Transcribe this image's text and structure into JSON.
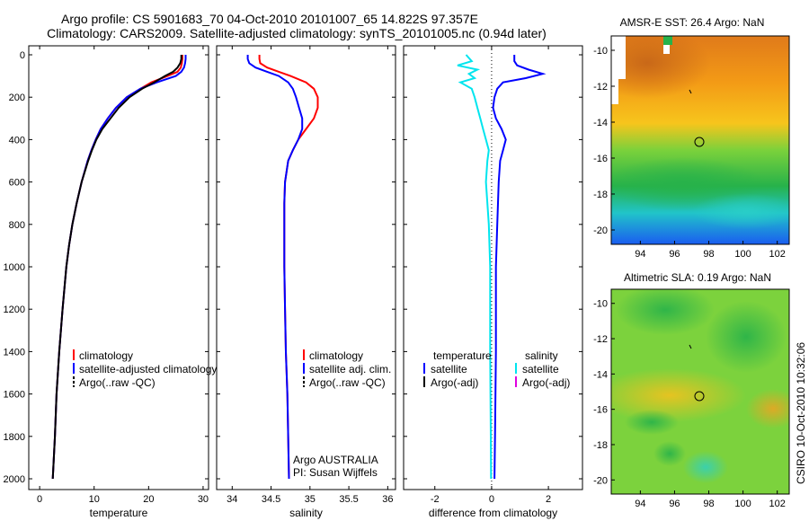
{
  "header": {
    "line1": "Argo profile: CS 5901683_70 04-Oct-2010 20101007_65 14.822S 97.357E",
    "line2": "Climatology: CARS2009. Satellite-adjusted climatology: synTS_20101005.nc (0.94d later)"
  },
  "colors": {
    "red": "#ff0000",
    "blue": "#0000ff",
    "black": "#000000",
    "cyan": "#00e5ee",
    "magenta": "#e000e0"
  },
  "chart_data": [
    {
      "type": "line",
      "xlabel": "temperature",
      "ylim": [
        2000,
        0
      ],
      "yticks": [
        "0",
        "200",
        "400",
        "600",
        "800",
        "1000",
        "1200",
        "1400",
        "1600",
        "1800",
        "2000"
      ],
      "xlim": [
        -2,
        31
      ],
      "xticks": [
        "0",
        "10",
        "20",
        "30"
      ],
      "legend": [
        "climatology",
        "satellite-adjusted climatology",
        "Argo(..raw -QC)"
      ],
      "series": [
        {
          "name": "climatology",
          "color": "red",
          "depth": [
            0,
            20,
            40,
            60,
            80,
            100,
            130,
            160,
            200,
            250,
            300,
            350,
            400,
            450,
            500,
            600,
            700,
            800,
            900,
            1000,
            1200,
            1400,
            1600,
            1800,
            2000
          ],
          "values": [
            26.2,
            26.2,
            26.1,
            25.9,
            25.3,
            23.5,
            20.5,
            18.5,
            16.0,
            14.0,
            12.5,
            11.2,
            10.3,
            9.5,
            8.8,
            7.7,
            6.8,
            6.0,
            5.4,
            4.9,
            4.2,
            3.6,
            3.1,
            2.8,
            2.4
          ]
        },
        {
          "name": "satellite-adjusted climatology",
          "color": "blue",
          "depth": [
            0,
            20,
            40,
            60,
            80,
            100,
            130,
            160,
            200,
            250,
            300,
            350,
            400,
            450,
            500,
            600,
            700,
            800,
            900,
            1000,
            1200,
            1400,
            1600,
            1800,
            2000
          ],
          "values": [
            26.8,
            26.8,
            26.7,
            26.5,
            26.0,
            25.0,
            21.5,
            18.5,
            16.0,
            14.0,
            12.5,
            11.2,
            10.3,
            9.5,
            8.8,
            7.7,
            6.8,
            6.0,
            5.4,
            4.9,
            4.2,
            3.6,
            3.1,
            2.8,
            2.4
          ]
        },
        {
          "name": "Argo(..raw -QC)",
          "color": "black",
          "depth": [
            0,
            20,
            40,
            60,
            80,
            100,
            130,
            160,
            200,
            250,
            300,
            350,
            400,
            450,
            500,
            600,
            700,
            800,
            900,
            1000,
            1200,
            1400,
            1600,
            1800,
            2000
          ],
          "values": [
            26.0,
            26.0,
            25.8,
            25.3,
            24.5,
            23.0,
            21.0,
            18.8,
            16.5,
            14.5,
            13.0,
            11.5,
            10.4,
            9.6,
            8.9,
            7.7,
            6.8,
            6.0,
            5.4,
            4.9,
            4.2,
            3.6,
            3.1,
            2.8,
            2.4
          ]
        }
      ]
    },
    {
      "type": "line",
      "xlabel": "salinity",
      "ylim": [
        2000,
        0
      ],
      "xlim": [
        33.8,
        36.1
      ],
      "xticks": [
        "34",
        "34.5",
        "35",
        "35.5",
        "36"
      ],
      "legend": [
        "climatology",
        "satellite adj. clim.",
        "Argo(..raw -QC)"
      ],
      "annotation": [
        "Argo AUSTRALIA",
        "PI: Susan Wijffels"
      ],
      "series": [
        {
          "name": "climatology",
          "color": "red",
          "depth": [
            0,
            20,
            40,
            60,
            80,
            100,
            130,
            160,
            200,
            250,
            300,
            350,
            400,
            450,
            500,
            600,
            700,
            800,
            1000,
            1200,
            1400,
            1600,
            1800,
            2000
          ],
          "values": [
            34.35,
            34.35,
            34.36,
            34.45,
            34.6,
            34.75,
            34.95,
            35.05,
            35.1,
            35.1,
            35.05,
            34.95,
            34.85,
            34.78,
            34.72,
            34.68,
            34.67,
            34.67,
            34.67,
            34.68,
            34.69,
            34.71,
            34.72,
            34.73
          ]
        },
        {
          "name": "satellite adj. clim.",
          "color": "blue",
          "depth": [
            0,
            20,
            40,
            60,
            80,
            100,
            130,
            160,
            200,
            250,
            300,
            350,
            400,
            450,
            500,
            600,
            700,
            800,
            1000,
            1200,
            1400,
            1600,
            1800,
            2000
          ],
          "values": [
            34.2,
            34.2,
            34.22,
            34.3,
            34.45,
            34.6,
            34.72,
            34.78,
            34.82,
            34.86,
            34.9,
            34.9,
            34.85,
            34.78,
            34.72,
            34.68,
            34.67,
            34.67,
            34.67,
            34.68,
            34.69,
            34.71,
            34.72,
            34.73
          ]
        },
        {
          "name": "Argo(..raw -QC)",
          "color": "black",
          "depth": [
            0
          ],
          "values": [
            34.35
          ]
        }
      ]
    },
    {
      "type": "line",
      "xlabel": "difference from climatology",
      "ylim": [
        2000,
        0
      ],
      "xlim": [
        -3.1,
        3.2
      ],
      "xticks": [
        "-2",
        "0",
        "2"
      ],
      "legend": {
        "temperature": [
          "satellite",
          "Argo(-adj)"
        ],
        "salinity": [
          "satellite",
          "Argo(-adj)"
        ]
      },
      "series": [
        {
          "name": "temperature satellite",
          "color": "blue",
          "depth": [
            0,
            30,
            50,
            70,
            90,
            110,
            130,
            160,
            200,
            250,
            300,
            350,
            400,
            450,
            500,
            600,
            800,
            1000,
            1400,
            1800,
            2000
          ],
          "values": [
            0.8,
            0.8,
            0.9,
            1.3,
            1.8,
            1.2,
            0.4,
            0.2,
            0.1,
            0.05,
            0.15,
            0.35,
            0.5,
            0.4,
            0.3,
            0.25,
            0.2,
            0.15,
            0.15,
            0.12,
            0.1
          ]
        },
        {
          "name": "salinity satellite",
          "color": "cyan",
          "depth": [
            0,
            30,
            50,
            70,
            90,
            110,
            130,
            160,
            200,
            250,
            300,
            350,
            400,
            450,
            500,
            600,
            700,
            800,
            1000,
            1400,
            1800,
            2000
          ],
          "values": [
            -0.9,
            -0.7,
            -1.2,
            -0.5,
            -0.8,
            -0.6,
            -1.1,
            -0.7,
            -0.6,
            -0.5,
            -0.4,
            -0.3,
            -0.2,
            -0.1,
            -0.15,
            -0.2,
            -0.15,
            -0.1,
            -0.05,
            -0.05,
            -0.03,
            -0.02
          ]
        }
      ]
    },
    {
      "type": "heatmap",
      "title": "AMSR-E SST: 26.4 Argo: NaN",
      "xticks": [
        "94",
        "96",
        "98",
        "100",
        "102"
      ],
      "yticks": [
        "-10",
        "-12",
        "-14",
        "-16",
        "-18",
        "-20"
      ],
      "xlim": [
        92.3,
        102.7
      ],
      "ylim": [
        -20.8,
        -9.2
      ],
      "argo_position": [
        97.357,
        -14.822
      ]
    },
    {
      "type": "heatmap",
      "title": "Altimetric SLA: 0.19 Argo: NaN",
      "xticks": [
        "94",
        "96",
        "98",
        "100",
        "102"
      ],
      "yticks": [
        "-10",
        "-12",
        "-14",
        "-16",
        "-18",
        "-20"
      ],
      "xlim": [
        92.3,
        102.7
      ],
      "ylim": [
        -20.8,
        -9.2
      ],
      "argo_position": [
        97.357,
        -14.822
      ]
    }
  ],
  "side_label": "CSIRO  10-Oct-2010 10:32:06"
}
